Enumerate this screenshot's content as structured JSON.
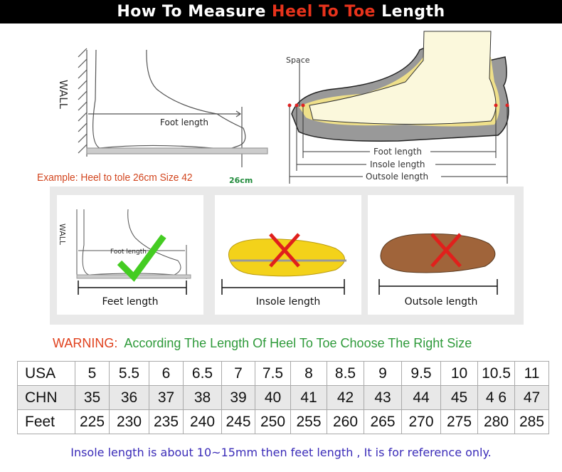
{
  "header": {
    "title_prefix": "How To Measure ",
    "title_highlight": "Heel To Toe",
    "title_suffix": " Length"
  },
  "diagram_left": {
    "wall": "WALL",
    "foot_length": "Foot length",
    "example": "Example: Heel to tole 26cm Size 42",
    "measure": "26cm"
  },
  "diagram_right": {
    "space": "Space",
    "foot_length": "Foot length",
    "insole_length": "Insole length",
    "outsole_length": "Outsole length"
  },
  "panels": [
    {
      "label": "Feet length",
      "mark": "check",
      "wall": "WALL",
      "foot_length": "Foot length"
    },
    {
      "label": "Insole length",
      "mark": "cross"
    },
    {
      "label": "Outsole length",
      "mark": "cross"
    }
  ],
  "warning": {
    "label": "WARNING:",
    "text": "According The Length Of Heel To Toe Choose The Right Size"
  },
  "size_table": {
    "rows": [
      {
        "header": "USA",
        "values": [
          "5",
          "5.5",
          "6",
          "6.5",
          "7",
          "7.5",
          "8",
          "8.5",
          "9",
          "9.5",
          "10",
          "10.5",
          "11"
        ]
      },
      {
        "header": "CHN",
        "values": [
          "35",
          "36",
          "37",
          "38",
          "39",
          "40",
          "41",
          "42",
          "43",
          "44",
          "45",
          "4 6",
          "47"
        ]
      },
      {
        "header": "Feet",
        "values": [
          "225",
          "230",
          "235",
          "240",
          "245",
          "250",
          "255",
          "260",
          "265",
          "270",
          "275",
          "280",
          "285"
        ]
      }
    ]
  },
  "note": "Insole length is about 10~15mm then feet length , It is for reference only.",
  "colors": {
    "highlight": "#e8331c",
    "warning": "#e0401c",
    "warning_text": "#2e9a3a",
    "note": "#3a2bb8",
    "check": "#44cc22",
    "cross": "#e0201c"
  }
}
